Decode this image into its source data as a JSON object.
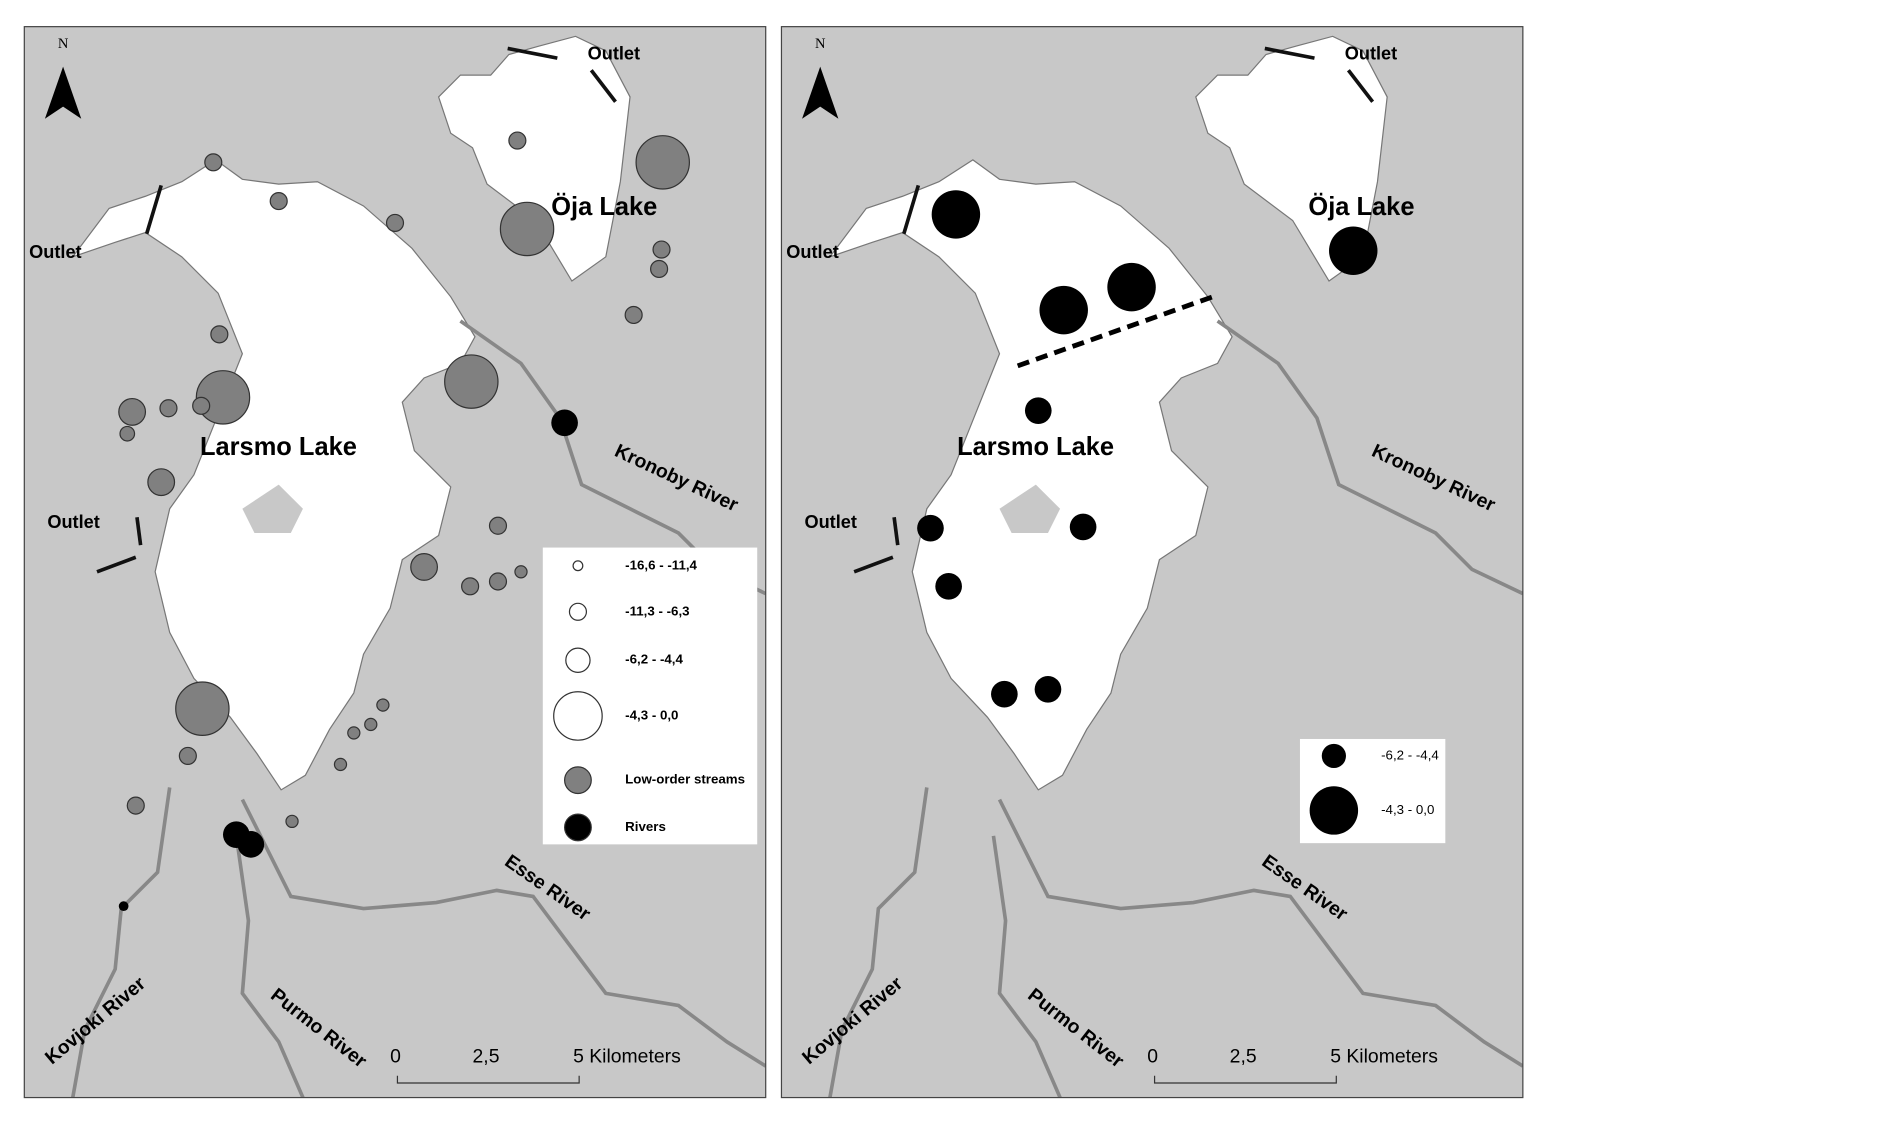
{
  "panels": [
    {
      "north": "N",
      "outlets": [
        "Outlet",
        "Outlet",
        "Outlet"
      ],
      "lakes": [
        "Öja Lake",
        "Larsmo Lake"
      ],
      "rivers": [
        "Kronoby River",
        "Esse River",
        "Purmo River",
        "Kovjoki River"
      ],
      "scale": [
        "0",
        "2,5",
        "5 Kilometers"
      ],
      "legend": [
        "-16,6 - -11,4",
        "-11,3 - -6,3",
        "-6,2 - -4,4",
        "-4,3 - 0,0",
        "Low-order streams",
        "Rivers"
      ]
    },
    {
      "north": "N",
      "outlets": [
        "Outlet",
        "Outlet",
        "Outlet"
      ],
      "lakes": [
        "Öja Lake",
        "Larsmo Lake"
      ],
      "rivers": [
        "Kronoby River",
        "Esse River",
        "Purmo River",
        "Kovjoki River"
      ],
      "scale": [
        "0",
        "2,5",
        "5 Kilometers"
      ],
      "legend": [
        "-6,2 - -4,4",
        "-4,3 - 0,0"
      ]
    }
  ]
}
